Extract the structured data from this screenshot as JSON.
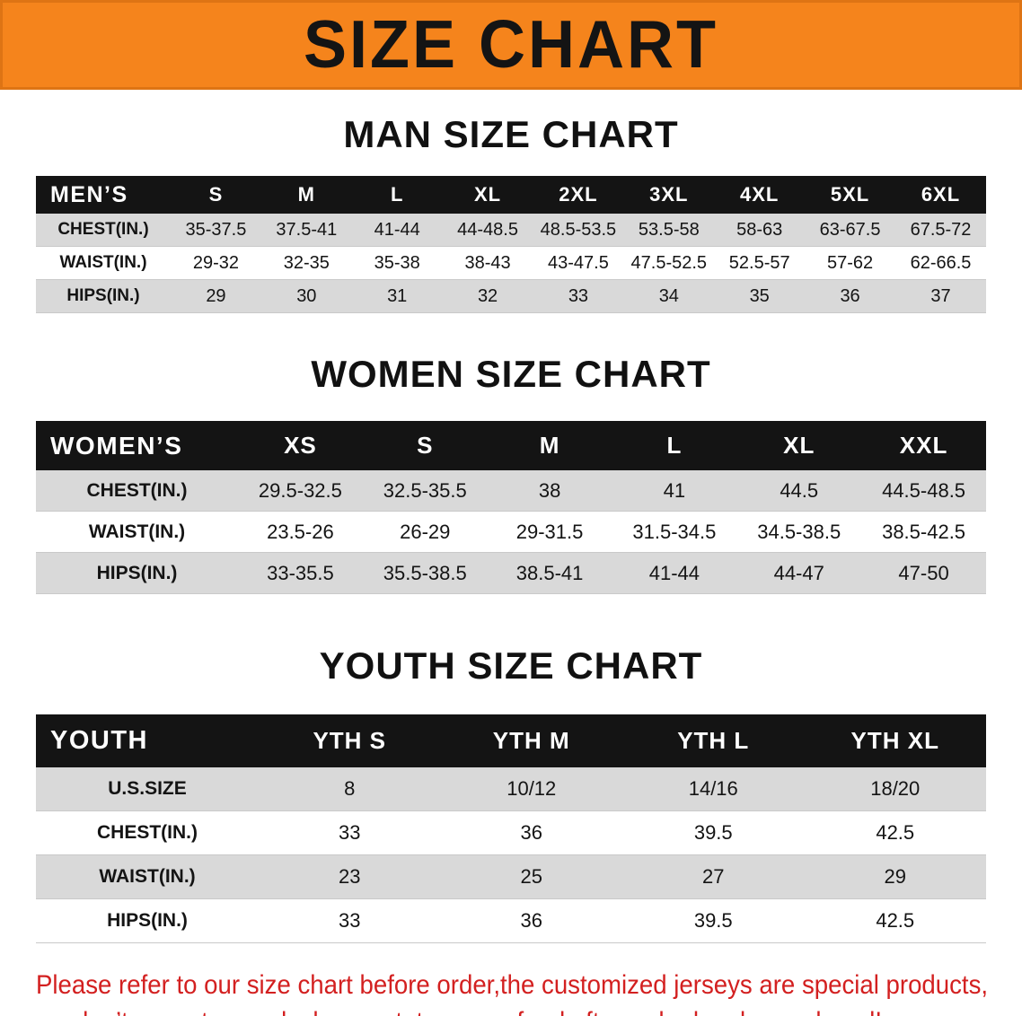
{
  "banner": {
    "title": "SIZE CHART"
  },
  "colors": {
    "banner-bg": "#f5841c",
    "header-bar-bg": "#141414",
    "row-alt-bg": "#d9d9d9",
    "footer-text": "#d32020"
  },
  "sections": [
    {
      "heading": "MAN SIZE CHART",
      "corner_label": "MEN’S",
      "columns": [
        "S",
        "M",
        "L",
        "XL",
        "2XL",
        "3XL",
        "4XL",
        "5XL",
        "6XL"
      ],
      "rows": [
        {
          "label": "CHEST(IN.)",
          "values": [
            "35-37.5",
            "37.5-41",
            "41-44",
            "44-48.5",
            "48.5-53.5",
            "53.5-58",
            "58-63",
            "63-67.5",
            "67.5-72"
          ]
        },
        {
          "label": "WAIST(IN.)",
          "values": [
            "29-32",
            "32-35",
            "35-38",
            "38-43",
            "43-47.5",
            "47.5-52.5",
            "52.5-57",
            "57-62",
            "62-66.5"
          ]
        },
        {
          "label": "HIPS(IN.)",
          "values": [
            "29",
            "30",
            "31",
            "32",
            "33",
            "34",
            "35",
            "36",
            "37"
          ]
        }
      ]
    },
    {
      "heading": "WOMEN SIZE CHART",
      "corner_label": "WOMEN’S",
      "columns": [
        "XS",
        "S",
        "M",
        "L",
        "XL",
        "XXL"
      ],
      "rows": [
        {
          "label": "CHEST(IN.)",
          "values": [
            "29.5-32.5",
            "32.5-35.5",
            "38",
            "41",
            "44.5",
            "44.5-48.5"
          ]
        },
        {
          "label": "WAIST(IN.)",
          "values": [
            "23.5-26",
            "26-29",
            "29-31.5",
            "31.5-34.5",
            "34.5-38.5",
            "38.5-42.5"
          ]
        },
        {
          "label": "HIPS(IN.)",
          "values": [
            "33-35.5",
            "35.5-38.5",
            "38.5-41",
            "41-44",
            "44-47",
            "47-50"
          ]
        }
      ]
    },
    {
      "heading": "YOUTH SIZE CHART",
      "corner_label": "YOUTH",
      "columns": [
        "YTH S",
        "YTH M",
        "YTH L",
        "YTH XL"
      ],
      "rows": [
        {
          "label": "U.S.SIZE",
          "values": [
            "8",
            "10/12",
            "14/16",
            "18/20"
          ]
        },
        {
          "label": "CHEST(IN.)",
          "values": [
            "33",
            "36",
            "39.5",
            "42.5"
          ]
        },
        {
          "label": "WAIST(IN.)",
          "values": [
            "23",
            "25",
            "27",
            "29"
          ]
        },
        {
          "label": "HIPS(IN.)",
          "values": [
            "33",
            "36",
            "39.5",
            "42.5"
          ]
        }
      ]
    }
  ],
  "footer": {
    "line1": "Please refer to our size chart before order,the customized jerseys are special products,",
    "line2": "we don’t accept cancel, change, teturn or refund after order has been placed!"
  }
}
